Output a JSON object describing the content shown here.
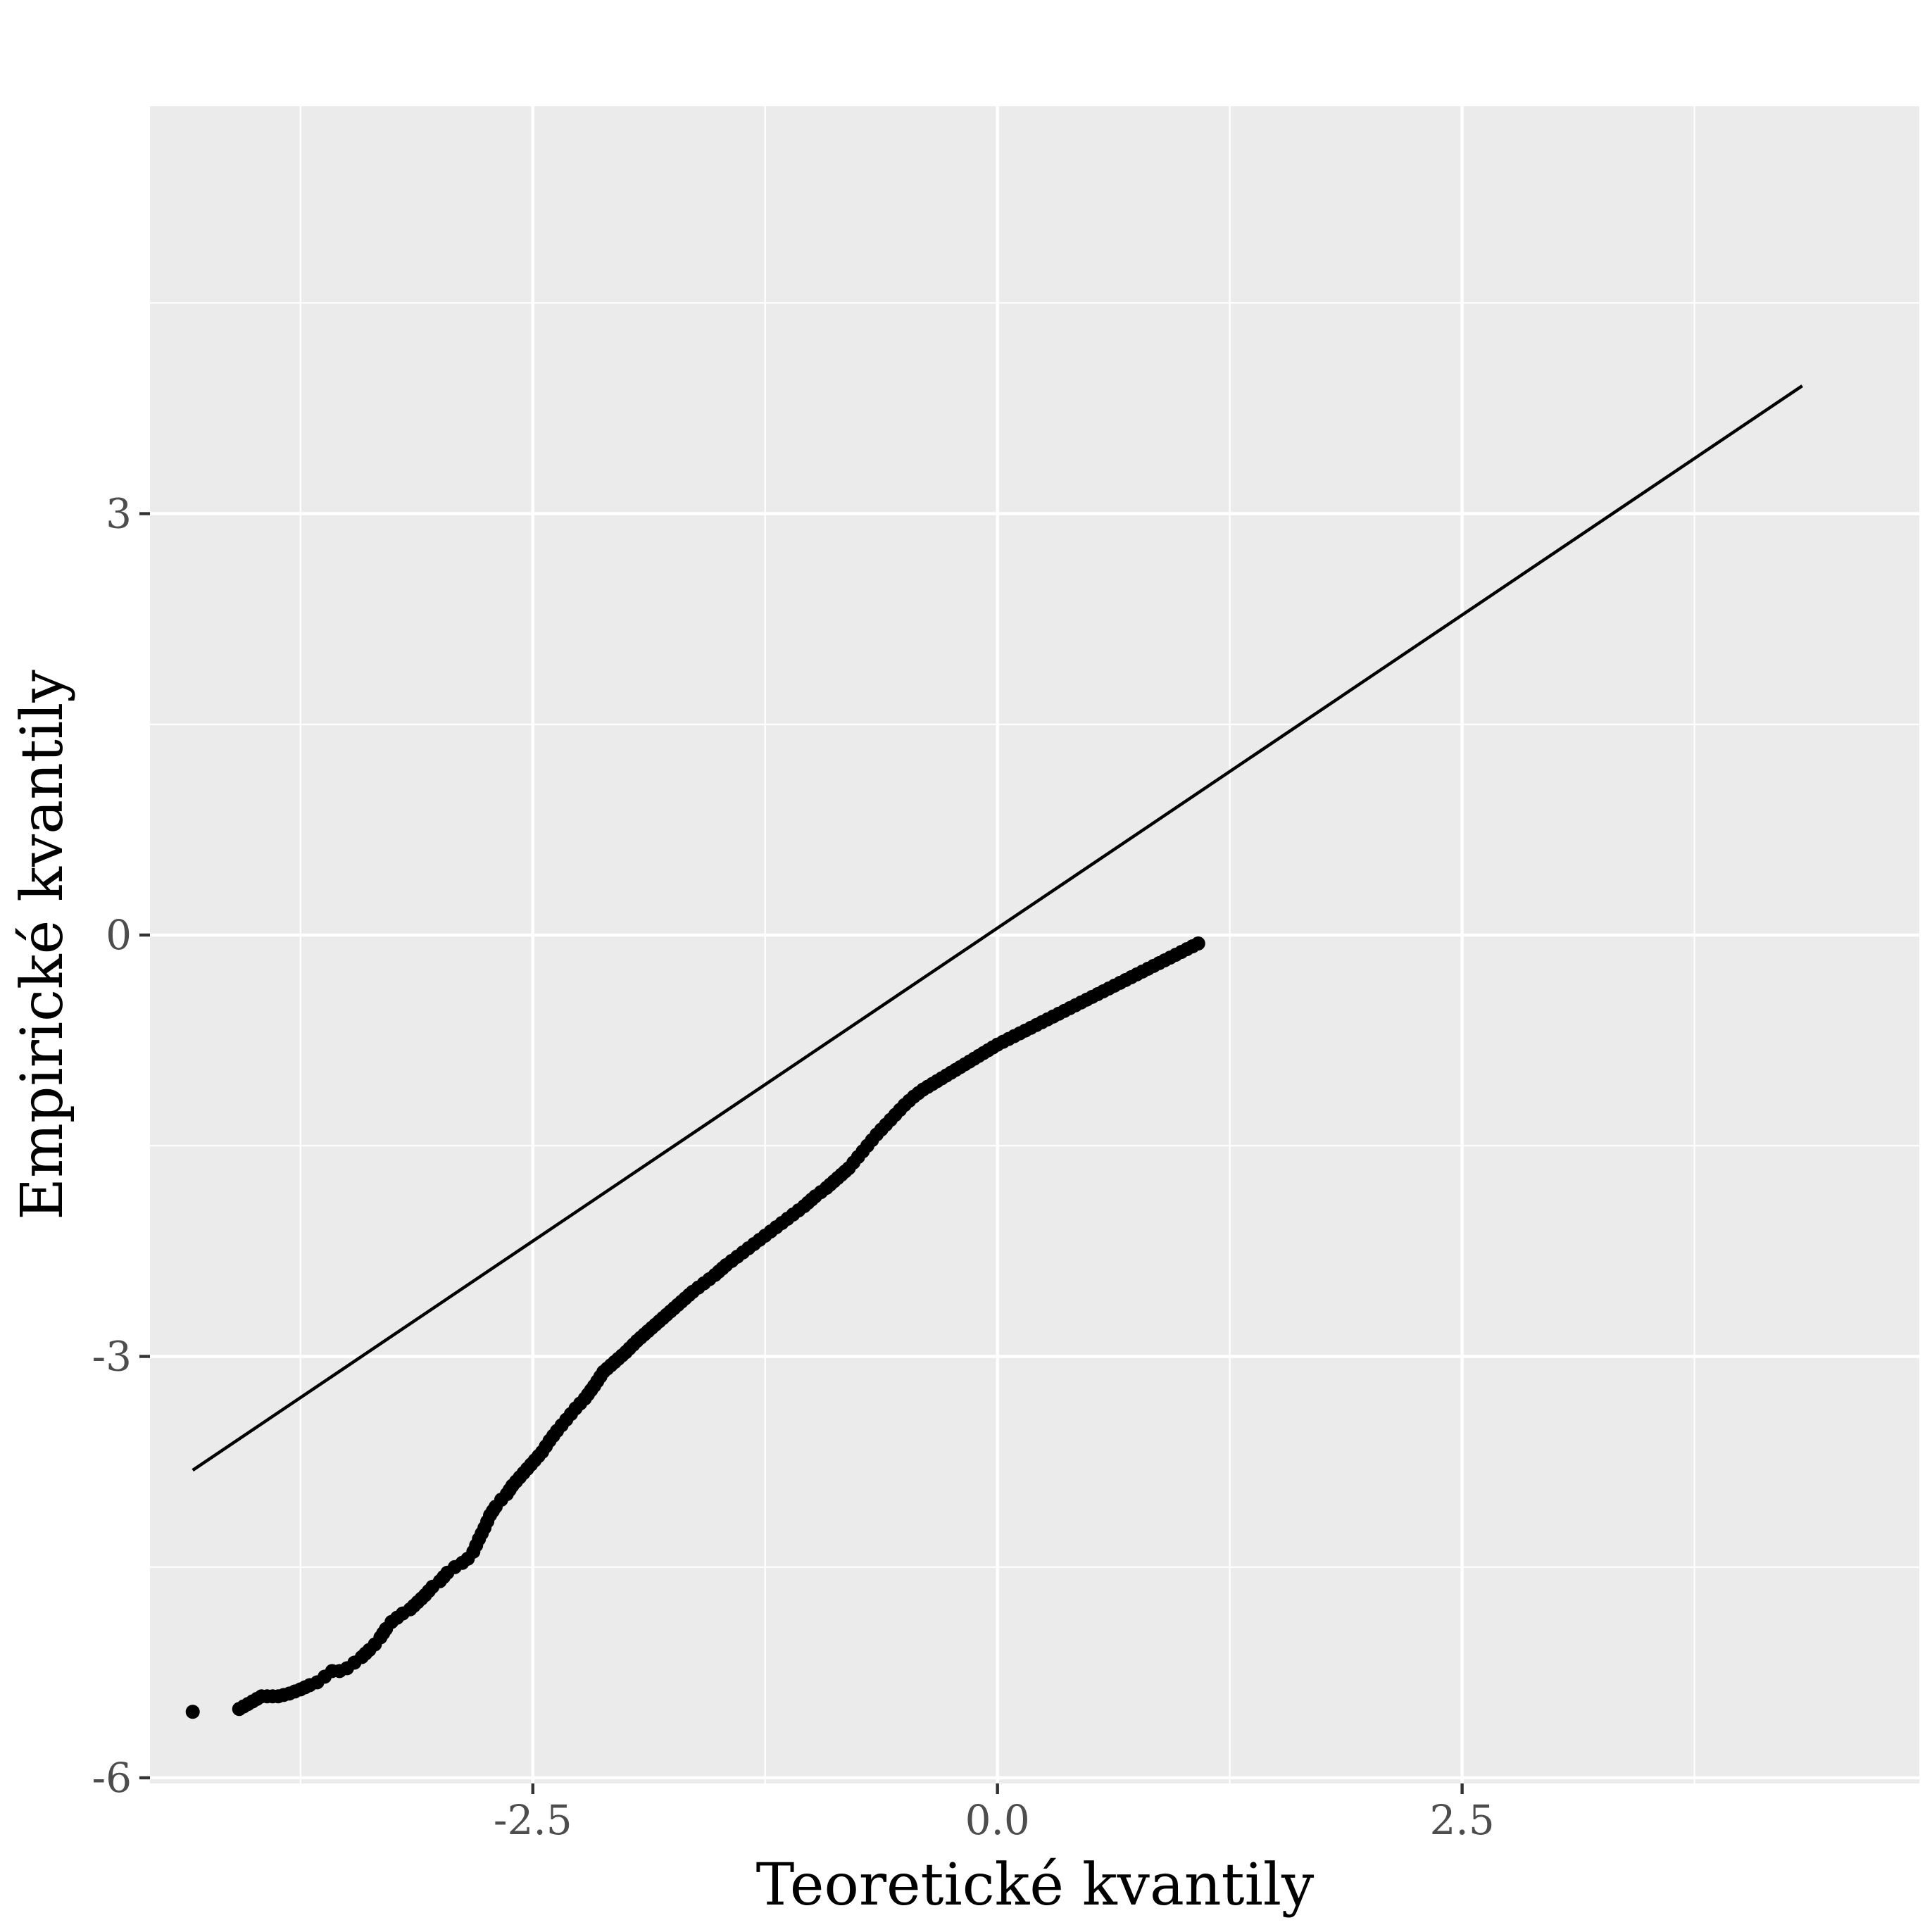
{
  "chart_data": {
    "type": "scatter",
    "title": "",
    "xlabel": "Teoretické kvantily",
    "ylabel": "Empirické kvantily",
    "xlim": [
      -4.56,
      4.96
    ],
    "ylim": [
      -6.04,
      5.9
    ],
    "x_ticks": [
      {
        "value": -2.5,
        "label": "-2.5"
      },
      {
        "value": 0,
        "label": "0.0"
      },
      {
        "value": 2.5,
        "label": "2.5"
      }
    ],
    "y_ticks": [
      {
        "value": -6,
        "label": "-6"
      },
      {
        "value": -3,
        "label": "-3"
      },
      {
        "value": 0,
        "label": "0"
      },
      {
        "value": 3,
        "label": "3"
      }
    ],
    "x_minor": [
      -3.75,
      -1.25,
      1.25,
      3.75
    ],
    "y_minor": [
      -4.5,
      -1.5,
      1.5,
      4.5
    ],
    "grid": true,
    "background_color": "#ebebeb",
    "point_color": "#000000",
    "line_color": "#000000",
    "reference_line": {
      "x": [
        -4.33,
        4.33
      ],
      "y": [
        -3.81,
        3.91
      ]
    },
    "series": [
      {
        "kind": "points",
        "points": [
          [
            -4.33,
            -5.53
          ],
          [
            -4.08,
            -5.51
          ],
          [
            -3.96,
            -5.42
          ],
          [
            -3.87,
            -5.42
          ],
          [
            -3.81,
            -5.4
          ],
          [
            -3.75,
            -5.37
          ],
          [
            -3.7,
            -5.34
          ],
          [
            -3.66,
            -5.32
          ],
          [
            -3.62,
            -5.28
          ],
          [
            -3.58,
            -5.24
          ],
          [
            -3.54,
            -5.24
          ],
          [
            -3.5,
            -5.22
          ],
          [
            -3.46,
            -5.18
          ],
          [
            -3.42,
            -5.14
          ],
          [
            -3.38,
            -5.09
          ],
          [
            -3.35,
            -5.05
          ],
          [
            -3.32,
            -5.0
          ],
          [
            -3.29,
            -4.94
          ],
          [
            -3.26,
            -4.89
          ],
          [
            -3.23,
            -4.86
          ],
          [
            -3.2,
            -4.83
          ],
          [
            -3.16,
            -4.8
          ],
          [
            -3.12,
            -4.75
          ],
          [
            -3.08,
            -4.7
          ],
          [
            -3.04,
            -4.64
          ],
          [
            -3.0,
            -4.6
          ],
          [
            -2.96,
            -4.54
          ],
          [
            -2.92,
            -4.5
          ],
          [
            -2.88,
            -4.47
          ],
          [
            -2.85,
            -4.44
          ],
          [
            -2.82,
            -4.39
          ],
          [
            -2.79,
            -4.3
          ],
          [
            -2.76,
            -4.22
          ],
          [
            -2.73,
            -4.13
          ],
          [
            -2.7,
            -4.07
          ],
          [
            -2.67,
            -4.02
          ],
          [
            -2.64,
            -3.98
          ],
          [
            -2.61,
            -3.92
          ],
          [
            -2.57,
            -3.86
          ],
          [
            -2.53,
            -3.8
          ],
          [
            -2.49,
            -3.74
          ],
          [
            -2.45,
            -3.68
          ],
          [
            -2.41,
            -3.6
          ],
          [
            -2.37,
            -3.53
          ],
          [
            -2.32,
            -3.45
          ],
          [
            -2.27,
            -3.37
          ],
          [
            -2.22,
            -3.3
          ],
          [
            -2.17,
            -3.21
          ],
          [
            -2.12,
            -3.11
          ],
          [
            -2.06,
            -3.04
          ],
          [
            -2.0,
            -2.97
          ],
          [
            -1.94,
            -2.89
          ],
          [
            -1.88,
            -2.82
          ],
          [
            -1.82,
            -2.75
          ],
          [
            -1.76,
            -2.68
          ],
          [
            -1.7,
            -2.61
          ],
          [
            -1.64,
            -2.54
          ],
          [
            -1.58,
            -2.48
          ],
          [
            -1.52,
            -2.42
          ],
          [
            -1.46,
            -2.35
          ],
          [
            -1.4,
            -2.29
          ],
          [
            -1.34,
            -2.23
          ],
          [
            -1.28,
            -2.17
          ],
          [
            -1.22,
            -2.11
          ],
          [
            -1.16,
            -2.05
          ],
          [
            -1.1,
            -1.99
          ],
          [
            -1.04,
            -1.93
          ],
          [
            -0.98,
            -1.86
          ],
          [
            -0.92,
            -1.8
          ],
          [
            -0.86,
            -1.73
          ],
          [
            -0.8,
            -1.66
          ],
          [
            -0.75,
            -1.58
          ],
          [
            -0.7,
            -1.5
          ],
          [
            -0.65,
            -1.42
          ],
          [
            -0.6,
            -1.35
          ],
          [
            -0.55,
            -1.28
          ],
          [
            -0.5,
            -1.21
          ],
          [
            -0.45,
            -1.15
          ],
          [
            -0.4,
            -1.1
          ],
          [
            -0.35,
            -1.06
          ],
          [
            -0.3,
            -1.02
          ],
          [
            -0.25,
            -0.98
          ],
          [
            -0.2,
            -0.94
          ],
          [
            -0.15,
            -0.9
          ],
          [
            -0.1,
            -0.86
          ],
          [
            -0.05,
            -0.82
          ],
          [
            0.0,
            -0.78
          ],
          [
            0.06,
            -0.74
          ],
          [
            0.12,
            -0.7
          ],
          [
            0.18,
            -0.66
          ],
          [
            0.24,
            -0.62
          ],
          [
            0.3,
            -0.58
          ],
          [
            0.36,
            -0.54
          ],
          [
            0.42,
            -0.5
          ],
          [
            0.48,
            -0.46
          ],
          [
            0.54,
            -0.42
          ],
          [
            0.6,
            -0.38
          ],
          [
            0.66,
            -0.34
          ],
          [
            0.72,
            -0.3
          ],
          [
            0.78,
            -0.26
          ],
          [
            0.84,
            -0.22
          ],
          [
            0.9,
            -0.18
          ],
          [
            0.96,
            -0.14
          ],
          [
            1.02,
            -0.1
          ],
          [
            1.08,
            -0.06
          ]
        ]
      }
    ]
  }
}
